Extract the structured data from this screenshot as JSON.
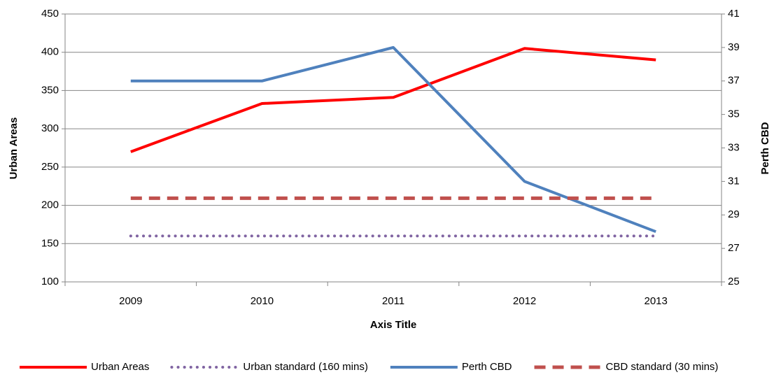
{
  "chart_data": {
    "type": "line",
    "x_label": "Axis Title",
    "y_label": "Urban Areas",
    "y2_label": "Perth CBD",
    "categories": [
      "2009",
      "2010",
      "2011",
      "2012",
      "2013"
    ],
    "series": [
      {
        "name": "Urban Areas",
        "color": "#ff0000",
        "style": "solid",
        "values": [
          270,
          333,
          341,
          405,
          390
        ]
      },
      {
        "name": "Urban standard (160 mins)",
        "color": "#8064a2",
        "style": "dotted",
        "values": [
          160,
          160,
          160,
          160,
          160
        ]
      },
      {
        "name": "Perth CBD",
        "color": "#4f81bd",
        "style": "solid",
        "axis": "y2",
        "values": [
          37,
          37,
          39,
          31,
          28
        ]
      },
      {
        "name": "CBD standard (30 mins)",
        "color": "#c0504d",
        "style": "dashed",
        "axis": "y2",
        "values": [
          30,
          30,
          30,
          30,
          30
        ]
      }
    ],
    "ylim": [
      100,
      450
    ],
    "yticks": [
      100,
      150,
      200,
      250,
      300,
      350,
      400,
      450
    ],
    "y2lim": [
      25,
      41
    ],
    "y2ticks": [
      25,
      27,
      29,
      31,
      33,
      35,
      37,
      39,
      41
    ],
    "grid": true,
    "legend": "bottom"
  }
}
